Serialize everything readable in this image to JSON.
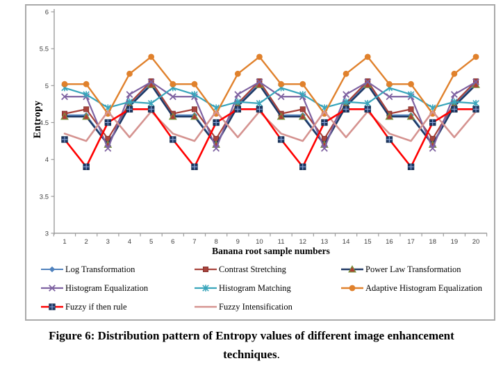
{
  "figure": {
    "caption_line1": "Figure 6: Distribution pattern of Entropy values of different image enhancement",
    "caption_line2": "techniques",
    "caption_period": "."
  },
  "chart_data": {
    "type": "line",
    "title": "",
    "xlabel": "Banana root sample numbers",
    "ylabel": "Entropy",
    "ylim": [
      3,
      6
    ],
    "yticks": [
      3,
      3.5,
      4,
      4.5,
      5,
      5.5,
      6
    ],
    "x": [
      1,
      2,
      3,
      4,
      5,
      6,
      7,
      8,
      9,
      10,
      11,
      12,
      13,
      14,
      15,
      16,
      17,
      18,
      19,
      20
    ],
    "grid": false,
    "legend_position": "bottom",
    "axis_color": "#9c9c9c",
    "series": [
      {
        "name": "Log Transformation",
        "slug": "log-transformation",
        "color": "#4F81BD",
        "marker": "diamond",
        "width": 2,
        "values": [
          4.6,
          4.6,
          4.21,
          4.74,
          5.03,
          4.6,
          4.6,
          4.21,
          4.74,
          5.03,
          4.6,
          4.6,
          4.21,
          4.74,
          5.03,
          4.6,
          4.6,
          4.21,
          4.74,
          5.03
        ]
      },
      {
        "name": "Contrast Stretching",
        "slug": "contrast-stretching",
        "color": "#A8433C",
        "marker": "square",
        "width": 2.2,
        "values": [
          4.62,
          4.68,
          4.28,
          4.76,
          5.06,
          4.62,
          4.68,
          4.28,
          4.76,
          5.06,
          4.62,
          4.68,
          4.28,
          4.76,
          5.06,
          4.62,
          4.68,
          4.28,
          4.76,
          5.06
        ]
      },
      {
        "name": "Power Law Transformation",
        "slug": "power-law-transformation",
        "color": "#1F3864",
        "marker": "triangle",
        "width": 2.4,
        "marker_fill": "#B03B35",
        "marker_stroke": "#76923C",
        "values": [
          4.58,
          4.58,
          4.2,
          4.72,
          5.01,
          4.58,
          4.58,
          4.2,
          4.72,
          5.01,
          4.58,
          4.58,
          4.2,
          4.72,
          5.01,
          4.58,
          4.58,
          4.2,
          4.72,
          5.01
        ]
      },
      {
        "name": "Histogram Equalization",
        "slug": "histogram-equalization",
        "color": "#7E62A1",
        "marker": "x",
        "width": 2.2,
        "values": [
          4.85,
          4.85,
          4.15,
          4.88,
          5.05,
          4.85,
          4.85,
          4.15,
          4.88,
          5.05,
          4.85,
          4.85,
          4.15,
          4.88,
          5.05,
          4.85,
          4.85,
          4.15,
          4.88,
          5.05
        ]
      },
      {
        "name": "Histogram Matching",
        "slug": "histogram-matching",
        "color": "#38A5BB",
        "marker": "asterisk",
        "width": 2.2,
        "values": [
          4.97,
          4.88,
          4.7,
          4.78,
          4.76,
          4.97,
          4.88,
          4.7,
          4.78,
          4.76,
          4.97,
          4.88,
          4.7,
          4.78,
          4.76,
          4.97,
          4.88,
          4.7,
          4.78,
          4.76
        ]
      },
      {
        "name": "Adaptive Histogram Equalization",
        "slug": "adaptive-histogram-equalization",
        "color": "#E0812C",
        "marker": "circle",
        "width": 2.4,
        "values": [
          5.02,
          5.02,
          4.62,
          5.16,
          5.39,
          5.02,
          5.02,
          4.62,
          5.16,
          5.39,
          5.02,
          5.02,
          4.62,
          5.16,
          5.39,
          5.02,
          5.02,
          4.62,
          5.16,
          5.39
        ]
      },
      {
        "name": "Fuzzy if then rule",
        "slug": "fuzzy-if-then-rule",
        "color": "#FF0000",
        "marker": "grid-square",
        "width": 2.6,
        "marker_fill": "#1F3864",
        "marker_stroke": "#152C4E",
        "marker_grid": "#8DA9DC",
        "values": [
          4.27,
          3.9,
          4.5,
          4.68,
          4.68,
          4.27,
          3.9,
          4.5,
          4.68,
          4.68,
          4.27,
          3.9,
          4.5,
          4.68,
          4.68,
          4.27,
          3.9,
          4.5,
          4.68,
          4.68
        ]
      },
      {
        "name": "Fuzzy Intensification",
        "slug": "fuzzy-intensification",
        "color": "#D59390",
        "marker": "none",
        "width": 2.6,
        "values": [
          4.35,
          4.25,
          4.65,
          4.3,
          4.65,
          4.35,
          4.25,
          4.65,
          4.3,
          4.65,
          4.35,
          4.25,
          4.65,
          4.3,
          4.65,
          4.35,
          4.25,
          4.65,
          4.3,
          4.65
        ]
      }
    ]
  }
}
